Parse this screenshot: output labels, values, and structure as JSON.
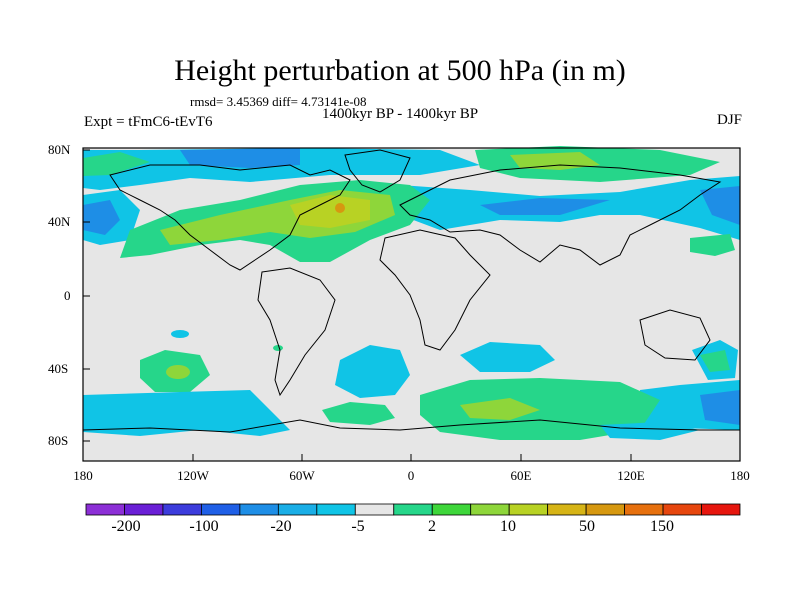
{
  "figure": {
    "title": "Height perturbation at 500 hPa (in m)",
    "stats": "rmsd= 3.45369 diff= 4.73141e-08",
    "period": "1400kyr BP - 1400kyr BP",
    "expt": "Expt = tFmC6-tEvT6",
    "season": "DJF"
  },
  "axes": {
    "lat_ticks": [
      "80N",
      "40N",
      "0",
      "40S",
      "80S"
    ],
    "lon_ticks": [
      "180",
      "120W",
      "60W",
      "0",
      "60E",
      "120E",
      "180"
    ]
  },
  "colorbar": {
    "colors": [
      "#8c2fd6",
      "#6a1fd6",
      "#3c3cdc",
      "#1f5fe6",
      "#1e8ee6",
      "#1aaee6",
      "#10c4e6",
      "#e6e6e6",
      "#26d68a",
      "#3ed63a",
      "#8ed63a",
      "#b8d224",
      "#d6b416",
      "#d69810",
      "#e6700e",
      "#e6460e",
      "#e6160e"
    ],
    "labels": [
      "-200",
      "-100",
      "-20",
      "-5",
      "2",
      "10",
      "50",
      "150"
    ]
  },
  "colors": {
    "background": "#e6e6e6",
    "light_blue": "#10c4e6",
    "blue": "#1e8ee6",
    "green": "#26d68a",
    "lime": "#8ed63a",
    "yellow": "#b8d224",
    "orange": "#e6700e"
  }
}
